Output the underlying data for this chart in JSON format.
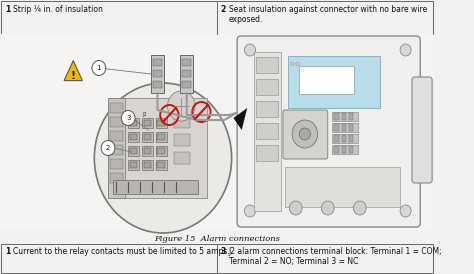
{
  "bg_color": "#f2f1ef",
  "top_table": {
    "col1_num": "1",
    "col1_text": "Strip ¼ in. of insulation",
    "col2_num": "2",
    "col2_text": "Seat insulation against connector with no bare wire\nexposed."
  },
  "figure_caption": "Figure 15  Alarm connections",
  "bottom_table": {
    "col1_num": "1",
    "col1_text": "Current to the relay contacts must be limited to 5 amps.",
    "col2_num": "3",
    "col2_text": "J2 alarm connections terminal block: Terminal 1 = COM;\nTerminal 2 = NO; Terminal 3 = NC"
  },
  "top_table_border": "#666666",
  "top_table_bg": "#f2f1ef",
  "diagram_bg": "#f2f1ef",
  "device_color": "#e0dede",
  "device_edge": "#888888",
  "circle_bg": "#eceae7",
  "board_bg": "#d8d5d0",
  "warning_yellow": "#f0b800",
  "no_red": "#cc1111",
  "callout_bg": "#ffffff",
  "wire_color": "#aaaaaa",
  "connector_bg": "#c8c8c8",
  "arrow_color": "#111111",
  "screen_color": "#b8dde8",
  "text_color": "#111111"
}
